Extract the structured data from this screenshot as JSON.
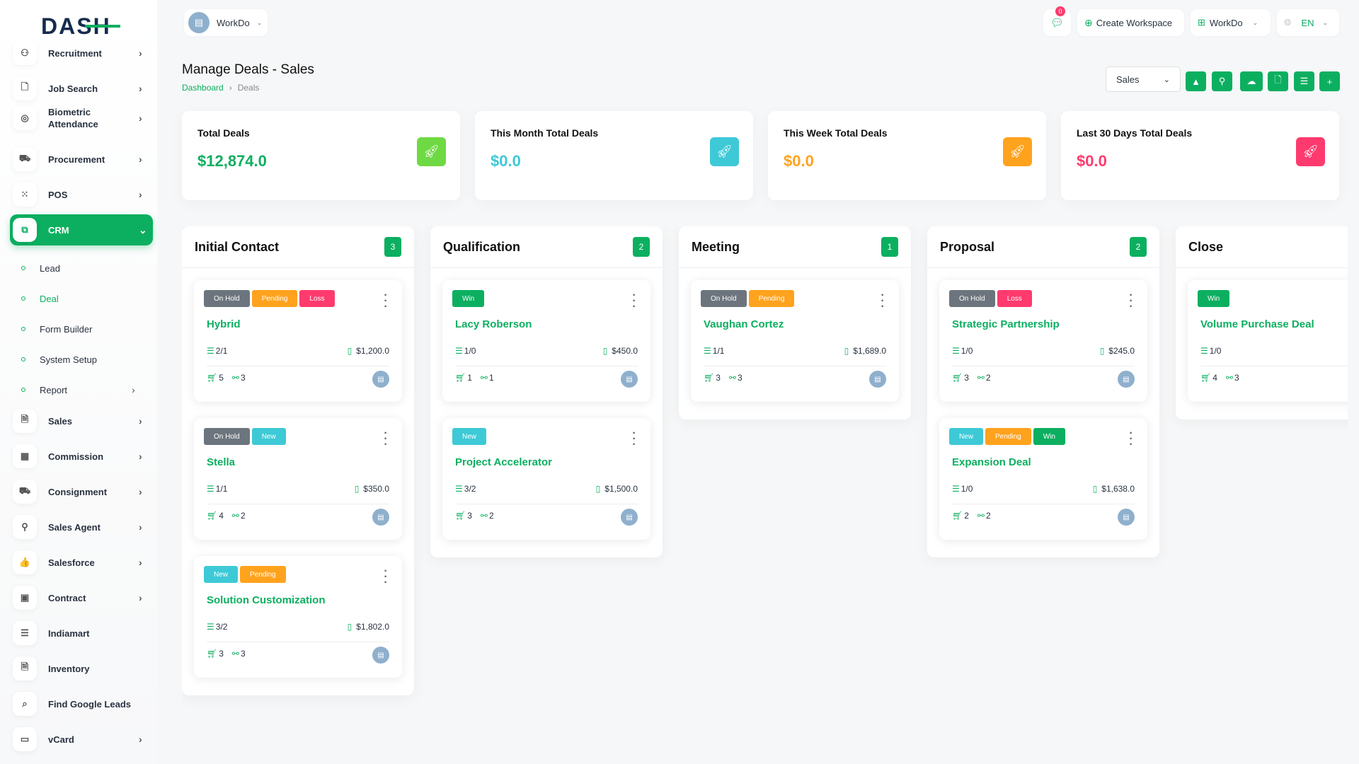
{
  "brand": {
    "logo": "DASH"
  },
  "sidebar": {
    "items": [
      {
        "label": "Recruitment",
        "icon": "user-plus-icon",
        "glyph": "⚇",
        "chevron": true
      },
      {
        "label": "Job Search",
        "icon": "file-search-icon",
        "glyph": "🗋",
        "chevron": true
      },
      {
        "label": "Biometric Attendance",
        "icon": "fingerprint-icon",
        "glyph": "◎",
        "chevron": true
      },
      {
        "label": "Procurement",
        "icon": "cart-icon",
        "glyph": "⛟",
        "chevron": true
      },
      {
        "label": "POS",
        "icon": "grid-dots-icon",
        "glyph": "⁙",
        "chevron": true
      },
      {
        "label": "CRM",
        "icon": "crm-icon",
        "glyph": "⧉",
        "chevron": true,
        "active": true
      },
      {
        "label": "Sales",
        "icon": "file-icon",
        "glyph": "🗎",
        "chevron": true
      },
      {
        "label": "Commission",
        "icon": "calculator-icon",
        "glyph": "▦",
        "chevron": true
      },
      {
        "label": "Consignment",
        "icon": "truck-icon",
        "glyph": "⛟",
        "chevron": true
      },
      {
        "label": "Sales Agent",
        "icon": "user-check-icon",
        "glyph": "⚲",
        "chevron": true
      },
      {
        "label": "Salesforce",
        "icon": "thumbs-up-icon",
        "glyph": "👍",
        "chevron": true
      },
      {
        "label": "Contract",
        "icon": "contract-icon",
        "glyph": "▣",
        "chevron": true
      },
      {
        "label": "Indiamart",
        "icon": "indent-icon",
        "glyph": "☰",
        "chevron": false
      },
      {
        "label": "Inventory",
        "icon": "file-text-icon",
        "glyph": "🗎",
        "chevron": false
      },
      {
        "label": "Find Google Leads",
        "icon": "search-icon",
        "glyph": "⌕",
        "chevron": false
      },
      {
        "label": "vCard",
        "icon": "credit-card-icon",
        "glyph": "▭",
        "chevron": true
      }
    ],
    "crm_sub": [
      {
        "label": "Lead"
      },
      {
        "label": "Deal",
        "active": true
      },
      {
        "label": "Form Builder"
      },
      {
        "label": "System Setup"
      },
      {
        "label": "Report",
        "chevron": true
      }
    ]
  },
  "header": {
    "workspace": "WorkDo",
    "notifications": "0",
    "create_workspace": "Create Workspace",
    "workspace_menu": "WorkDo",
    "language": "EN"
  },
  "page": {
    "title": "Manage Deals - Sales",
    "breadcrumb": [
      "Dashboard",
      "Deals"
    ],
    "pipeline_select": "Sales",
    "toolbar": [
      "google-drive-icon",
      "hubspot-icon",
      "onedrive-icon",
      "import-file-icon",
      "list-view-icon",
      "add-icon"
    ]
  },
  "stats": [
    {
      "title": "Total Deals",
      "value": "$12,874.0",
      "color": "#0caf60",
      "icon_bg": "#6fd943"
    },
    {
      "title": "This Month Total Deals",
      "value": "$0.0",
      "color": "#3ec9d6",
      "icon_bg": "#3ec9d6"
    },
    {
      "title": "This Week Total Deals",
      "value": "$0.0",
      "color": "#ffa21d",
      "icon_bg": "#ffa21d"
    },
    {
      "title": "Last 30 Days Total Deals",
      "value": "$0.0",
      "color": "#ff3a6e",
      "icon_bg": "#ff3a6e"
    }
  ],
  "tag_colors": {
    "On Hold": "#6c757d",
    "Pending": "#ffa21d",
    "Loss": "#ff3a6e",
    "Win": "#0caf60",
    "New": "#3ec9d6"
  },
  "columns": [
    {
      "title": "Initial Contact",
      "count": "3",
      "deals": [
        {
          "tags": [
            "On Hold",
            "Pending",
            "Loss"
          ],
          "name": "Hybrid",
          "tasks": "2/1",
          "amount": "$1,200.0",
          "products": "5",
          "sources": "3"
        },
        {
          "tags": [
            "On Hold",
            "New"
          ],
          "name": "Stella",
          "tasks": "1/1",
          "amount": "$350.0",
          "products": "4",
          "sources": "2"
        },
        {
          "tags": [
            "New",
            "Pending"
          ],
          "name": "Solution Customization",
          "tasks": "3/2",
          "amount": "$1,802.0",
          "products": "3",
          "sources": "3"
        }
      ]
    },
    {
      "title": "Qualification",
      "count": "2",
      "deals": [
        {
          "tags": [
            "Win"
          ],
          "name": "Lacy Roberson",
          "tasks": "1/0",
          "amount": "$450.0",
          "products": "1",
          "sources": "1"
        },
        {
          "tags": [
            "New"
          ],
          "name": "Project Accelerator",
          "tasks": "3/2",
          "amount": "$1,500.0",
          "products": "3",
          "sources": "2"
        }
      ]
    },
    {
      "title": "Meeting",
      "count": "1",
      "deals": [
        {
          "tags": [
            "On Hold",
            "Pending"
          ],
          "name": "Vaughan Cortez",
          "tasks": "1/1",
          "amount": "$1,689.0",
          "products": "3",
          "sources": "3"
        }
      ]
    },
    {
      "title": "Proposal",
      "count": "2",
      "deals": [
        {
          "tags": [
            "On Hold",
            "Loss"
          ],
          "name": "Strategic Partnership",
          "tasks": "1/0",
          "amount": "$245.0",
          "products": "3",
          "sources": "2"
        },
        {
          "tags": [
            "New",
            "Pending",
            "Win"
          ],
          "name": "Expansion Deal",
          "tasks": "1/0",
          "amount": "$1,638.0",
          "products": "2",
          "sources": "2"
        }
      ]
    },
    {
      "title": "Close",
      "deals": [
        {
          "tags": [
            "Win"
          ],
          "name": "Volume Purchase Deal",
          "tasks": "1/0",
          "products": "4",
          "sources": "3"
        }
      ]
    }
  ]
}
